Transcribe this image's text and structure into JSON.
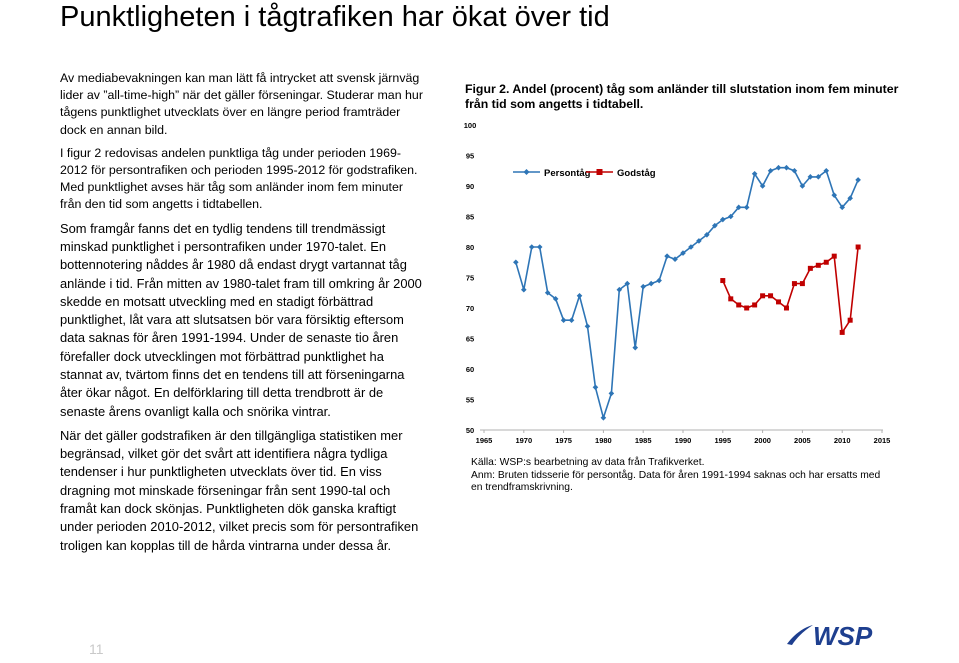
{
  "page": {
    "title": "Punktligheten i tågtrafiken har ökat över tid",
    "page_number": "11"
  },
  "body": {
    "p1": "Av mediabevakningen kan man lätt få intrycket att svensk järnväg lider av ”all-time-high” när det gäller förseningar. Studerar man hur tågens punktlighet utvecklats över en längre period framträder dock en annan bild.",
    "p2": "I figur 2 redovisas andelen punktliga tåg under perioden 1969-2012 för persontrafiken och perioden 1995-2012 för godstrafiken. Med punktlighet avses här tåg som anländer inom fem minuter från den tid som angetts i tidtabellen.",
    "p3": "Som framgår fanns det en tydlig tendens till trendmässigt minskad punktlighet i persontrafiken under 1970-talet. En bottennotering nåddes år 1980 då endast drygt vartannat tåg anlände i tid. Från mitten av 1980-talet fram till omkring år 2000 skedde en motsatt utveckling med en stadigt förbättrad punktlighet, låt vara att slutsatsen bör vara försiktig eftersom data saknas för åren 1991-1994. Under de senaste tio åren förefaller dock utvecklingen mot förbättrad punktlighet ha stannat av, tvärtom finns det en tendens till att förseningarna åter ökar något. En delförklaring till detta trendbrott är de senaste årens ovanligt kalla och snörika vintrar.",
    "p4": "När det gäller godstrafiken är den tillgängliga statistiken mer begränsad, vilket gör det svårt att identifiera några tydliga tendenser i hur punktligheten utvecklats över tid. En viss dragning mot minskade förseningar från sent 1990-tal och framåt kan dock skönjas. Punktligheten dök ganska kraftigt under perioden 2010-2012, vilket precis som för persontrafiken troligen kan kopplas till de hårda vintrarna under dessa år."
  },
  "figure": {
    "caption": "Figur 2. Andel (procent) tåg som anländer till slutstation inom fem minuter från tid som angetts i tidtabell.",
    "source": "Källa: WSP:s bearbetning av data från Trafikverket.",
    "note": "Anm: Bruten tidsserie för persontåg. Data för åren 1991-1994 saknas och har ersatts med en trendframskrivning."
  },
  "chart_data": {
    "type": "line",
    "xlim": [
      1965,
      2015
    ],
    "ylim": [
      50,
      100
    ],
    "x_ticks": [
      1965,
      1970,
      1975,
      1980,
      1985,
      1990,
      1995,
      2000,
      2005,
      2010,
      2015
    ],
    "y_ticks": [
      50,
      55,
      60,
      65,
      70,
      75,
      80,
      85,
      90,
      95,
      100
    ],
    "grid": false,
    "legend_position": "top-left",
    "series": [
      {
        "name": "Persontåg",
        "color": "#2e75b6",
        "points": [
          [
            1969,
            77.5
          ],
          [
            1970,
            73.0
          ],
          [
            1971,
            80.0
          ],
          [
            1972,
            80.0
          ],
          [
            1973,
            72.5
          ],
          [
            1974,
            71.5
          ],
          [
            1975,
            68.0
          ],
          [
            1976,
            68.0
          ],
          [
            1977,
            72.0
          ],
          [
            1978,
            67.0
          ],
          [
            1979,
            57.0
          ],
          [
            1980,
            52.0
          ],
          [
            1981,
            56.0
          ],
          [
            1982,
            73.0
          ],
          [
            1983,
            74.0
          ],
          [
            1984,
            63.5
          ],
          [
            1985,
            73.5
          ],
          [
            1986,
            74.0
          ],
          [
            1987,
            74.5
          ],
          [
            1988,
            78.5
          ],
          [
            1989,
            78.0
          ],
          [
            1990,
            79.0
          ],
          [
            1991,
            80.0
          ],
          [
            1992,
            81.0
          ],
          [
            1993,
            82.0
          ],
          [
            1994,
            83.5
          ],
          [
            1995,
            84.5
          ],
          [
            1996,
            85.0
          ],
          [
            1997,
            86.5
          ],
          [
            1998,
            86.5
          ],
          [
            1999,
            92.0
          ],
          [
            2000,
            90.0
          ],
          [
            2001,
            92.5
          ],
          [
            2002,
            93.0
          ],
          [
            2003,
            93.0
          ],
          [
            2004,
            92.5
          ],
          [
            2005,
            90.0
          ],
          [
            2006,
            91.5
          ],
          [
            2007,
            91.5
          ],
          [
            2008,
            92.5
          ],
          [
            2009,
            88.5
          ],
          [
            2010,
            86.5
          ],
          [
            2011,
            88.0
          ],
          [
            2012,
            91.0
          ]
        ]
      },
      {
        "name": "Godståg",
        "color": "#c00000",
        "points": [
          [
            1995,
            74.5
          ],
          [
            1996,
            71.5
          ],
          [
            1997,
            70.5
          ],
          [
            1998,
            70.0
          ],
          [
            1999,
            70.5
          ],
          [
            2000,
            72.0
          ],
          [
            2001,
            72.0
          ],
          [
            2002,
            71.0
          ],
          [
            2003,
            70.0
          ],
          [
            2004,
            74.0
          ],
          [
            2005,
            74.0
          ],
          [
            2006,
            76.5
          ],
          [
            2007,
            77.0
          ],
          [
            2008,
            77.5
          ],
          [
            2009,
            78.5
          ],
          [
            2010,
            66.0
          ],
          [
            2011,
            68.0
          ],
          [
            2012,
            80.0
          ]
        ]
      }
    ]
  },
  "logo": {
    "text": "WSP",
    "color": "#1e3f8f"
  }
}
